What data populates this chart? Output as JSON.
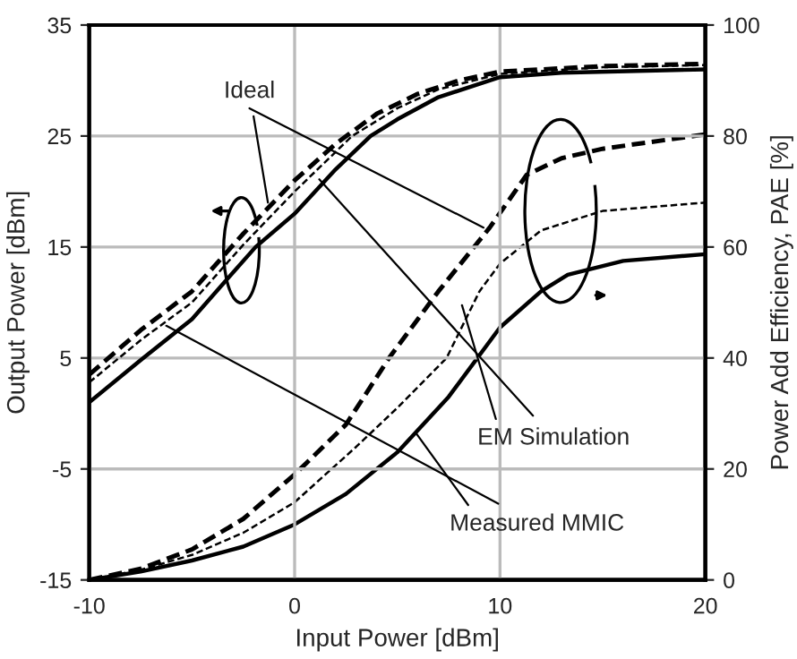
{
  "chart_data": {
    "type": "line",
    "xlabel": "Input Power [dBm]",
    "ylabel": "Output Power [dBm]",
    "y2label": "Power Add Efficiency, PAE [%]",
    "xlim": [
      -10,
      20
    ],
    "xticks": [
      -10,
      0,
      10,
      20
    ],
    "ylim": [
      -15,
      35
    ],
    "yticks": [
      -15,
      -5,
      5,
      15,
      25,
      35
    ],
    "y2lim": [
      0,
      100
    ],
    "y2ticks": [
      0,
      20,
      40,
      60,
      80,
      100
    ],
    "grid": true,
    "marker": "none",
    "series": [
      {
        "color": "#000000",
        "line_style": "dashed",
        "x": [
          -10,
          -7.5,
          -5,
          -2.5,
          0,
          2,
          4,
          6,
          8,
          10,
          15,
          20
        ],
        "values": [
          3.5,
          7.5,
          11,
          16.2,
          21,
          24.3,
          27,
          28.8,
          30,
          30.8,
          31.3,
          31.5
        ]
      },
      {
        "color": "#000000",
        "line_style": "dashed",
        "x": [
          -10,
          -7.5,
          -5,
          -2.5,
          0,
          2.8,
          5,
          7,
          10,
          15,
          20
        ],
        "values": [
          2.8,
          6.6,
          10,
          15.2,
          20,
          25,
          27.5,
          29.2,
          30.6,
          31.2,
          31.4
        ]
      },
      {
        "color": "#000000",
        "line_style": "solid",
        "x": [
          -10,
          -7.5,
          -5,
          -1.9,
          0,
          2,
          3.7,
          5,
          7,
          10,
          13,
          20
        ],
        "values": [
          1,
          4.8,
          8.5,
          15,
          18,
          22,
          25,
          26.5,
          28.5,
          30.3,
          30.7,
          31
        ]
      },
      {
        "color": "#000000",
        "line_style": "dashed",
        "axis": "y2",
        "x": [
          -10,
          -7.5,
          -5,
          -2.5,
          0,
          2.5,
          4.6,
          7,
          9.5,
          11.3,
          13,
          15,
          20
        ],
        "values": [
          0,
          2,
          5.5,
          11,
          19,
          28,
          40,
          52,
          63.5,
          73,
          76,
          77.7,
          80.3
        ]
      },
      {
        "color": "#000000",
        "line_style": "dashed",
        "axis": "y2",
        "x": [
          -10,
          -7.5,
          -5,
          -2.5,
          0,
          3,
          5,
          7.4,
          9,
          10,
          12,
          15,
          20
        ],
        "values": [
          0,
          1.8,
          4.5,
          8.5,
          14,
          24,
          31,
          40,
          52,
          57,
          63,
          66.5,
          68
        ]
      },
      {
        "color": "#000000",
        "line_style": "solid",
        "axis": "y2",
        "x": [
          -10,
          -7.5,
          -5,
          -2.5,
          0,
          2.5,
          5,
          7.5,
          10,
          12,
          13.3,
          16,
          20
        ],
        "values": [
          0,
          1.5,
          3.5,
          6,
          10,
          15.5,
          23,
          33,
          45.5,
          52,
          55,
          57.5,
          58.7
        ]
      }
    ],
    "annotations": [
      {
        "text": "Ideal",
        "x": -1.3,
        "y": 19
      },
      {
        "text": "EM Simulation",
        "x": 1.2,
        "y": 21.1
      },
      {
        "text": "Measured MMIC",
        "x": -6.25,
        "y": 7.9
      }
    ]
  }
}
